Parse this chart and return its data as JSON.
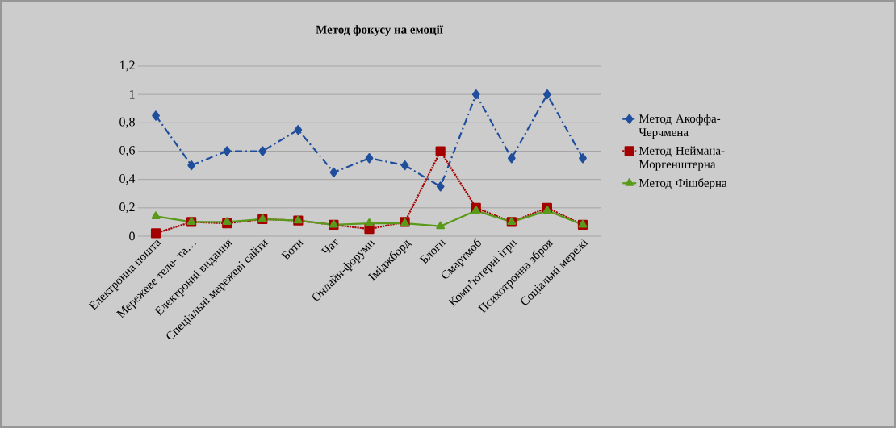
{
  "chart_data": {
    "type": "line",
    "title": "Метод фокусу на емоції",
    "categories": [
      "Електронна пошта",
      "Мережеве теле- та…",
      "Електронні видання",
      "Спеціальні мережеві сайти",
      "Боти",
      "Чат",
      "Онлайн-форуми",
      "Іміджборд",
      "Блоги",
      "Смартмоб",
      "Комп’ютерні ігри",
      "Психотронна зброя",
      "Соціальні мережі"
    ],
    "series": [
      {
        "name": "Метод Акоффа-Черчмена",
        "color": "#1f4e9c",
        "marker": "diamond",
        "line_style": "dashed",
        "values": [
          0.85,
          0.5,
          0.6,
          0.6,
          0.75,
          0.45,
          0.55,
          0.5,
          0.35,
          1.0,
          0.55,
          1.0,
          0.55
        ]
      },
      {
        "name": "Метод Неймана-Моргенштерна",
        "color": "#a50000",
        "marker": "square",
        "line_style": "dotted",
        "values": [
          0.02,
          0.1,
          0.09,
          0.12,
          0.11,
          0.08,
          0.05,
          0.1,
          0.6,
          0.2,
          0.1,
          0.2,
          0.08
        ]
      },
      {
        "name": "Метод Фішберна",
        "color": "#5a9a1a",
        "marker": "triangle",
        "line_style": "solid",
        "values": [
          0.14,
          0.1,
          0.1,
          0.12,
          0.11,
          0.08,
          0.09,
          0.09,
          0.07,
          0.18,
          0.1,
          0.18,
          0.08
        ]
      }
    ],
    "ylim": [
      0,
      1.2
    ],
    "yticks": [
      0,
      {
        "value": 0.2,
        "label": "0,2"
      },
      {
        "value": 0.4,
        "label": "0,4"
      },
      {
        "value": 0.6,
        "label": "0,6"
      },
      {
        "value": 0.8,
        "label": "0,8"
      },
      1,
      {
        "value": 1.2,
        "label": "1,2"
      }
    ],
    "grid": "y",
    "legend": "right"
  }
}
